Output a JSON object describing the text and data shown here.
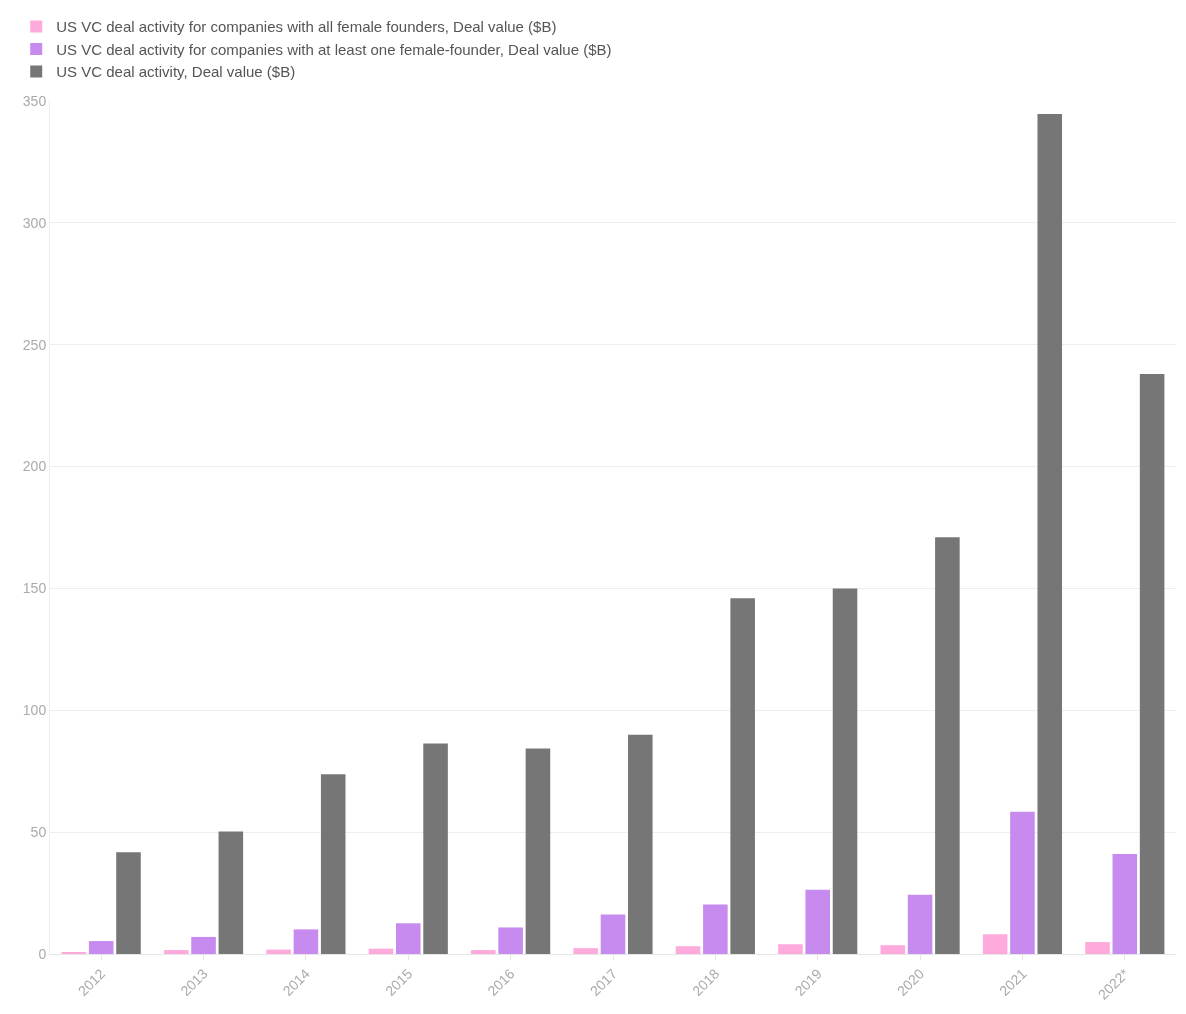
{
  "chart_data": {
    "type": "bar",
    "categories": [
      "2012",
      "2013",
      "2014",
      "2015",
      "2016",
      "2017",
      "2018",
      "2019",
      "2020",
      "2021",
      "2022*"
    ],
    "series": [
      {
        "name": "US VC deal activity for companies with all female founders, Deal value ($B)",
        "color": "#ffaadd",
        "values": [
          0.8,
          1.6,
          1.8,
          2.2,
          1.6,
          2.4,
          3.2,
          4,
          3.6,
          8.1,
          4.9
        ]
      },
      {
        "name": "US VC deal activity for companies with at least one female-founder, Deal value ($B)",
        "color": "#c78aef",
        "values": [
          5.3,
          7,
          10.1,
          12.6,
          10.9,
          16.2,
          20.3,
          26.4,
          24.3,
          58.4,
          41
        ]
      },
      {
        "name": "US VC deal activity, Deal value ($B)",
        "color": "#767676",
        "values": [
          41.8,
          50.3,
          73.8,
          86.4,
          84.3,
          90,
          146,
          150,
          171,
          344.7,
          238
        ]
      }
    ],
    "ylim": [
      0,
      350
    ],
    "yticks": [
      0,
      50,
      100,
      150,
      200,
      250,
      300,
      350
    ],
    "grid": "y",
    "legend": "top left"
  }
}
